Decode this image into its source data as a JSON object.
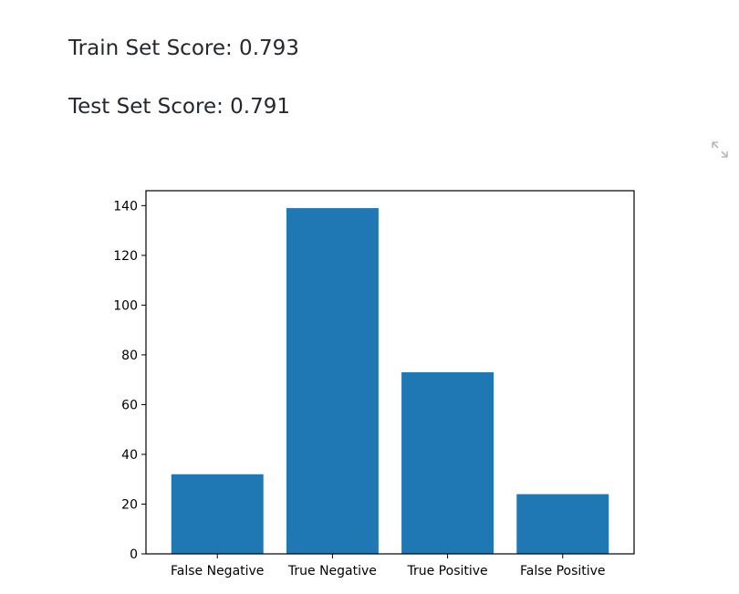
{
  "scores": {
    "train_label": "Train Set Score: 0.793",
    "test_label": "Test Set Score: 0.791"
  },
  "toolbar": {
    "expand_icon": "expand-icon"
  },
  "chart_data": {
    "type": "bar",
    "categories": [
      "False Negative",
      "True Negative",
      "True Positive",
      "False Positive"
    ],
    "values": [
      32,
      139,
      73,
      24
    ],
    "title": "",
    "xlabel": "",
    "ylabel": "",
    "ylim": [
      0,
      146
    ],
    "yticks": [
      0,
      20,
      40,
      60,
      80,
      100,
      120,
      140
    ],
    "bar_color": "#1f77b4",
    "grid": false
  }
}
